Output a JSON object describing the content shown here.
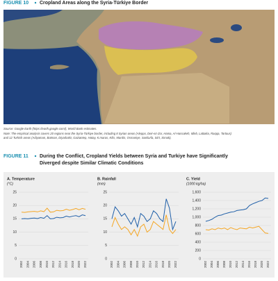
{
  "figure10": {
    "label": "FIGURE 10",
    "title": "Cropland Areas along the Syria-Türkiye Border",
    "source": "Source: Google Earth (https://earth.google.com/); World Bank estimates.",
    "note": [
      "Note: The empirical analysis covers 20 regions near the Syria-Türkiye border, including 8 Syrian areas (Aleppo, Deir-ez-Zor, Hama, Al-Hassakeh, Idleb, Lattakia, Raqqa, Tartous)",
      "and 12 Turkish areas (Adiyaman, Batman, Diyarbakir, Gaziantep, Hatay, K.maras, Kilis, Mardin, Osmaniye, Sanliurfa, Siirt, Sirnak)."
    ]
  },
  "figure11": {
    "label": "FIGURE 11",
    "title": [
      "During the Conflict, Cropland Yields between Syria and Turkiye have Significantly",
      "Diverged despite Similar Climatic Conditions"
    ],
    "panels": [
      {
        "type": "line",
        "title": "A. Temperature",
        "unit": "(°C)",
        "categories": [
          "2002",
          null,
          "2004",
          null,
          "2006",
          null,
          "2008",
          null,
          "2010",
          null,
          "2012",
          null,
          "2014",
          null,
          "2016",
          null,
          "2018",
          null,
          "2020",
          null,
          "2022"
        ],
        "series": [
          {
            "color": "#1f5fa8",
            "values": [
              15.0,
              15.1,
              15.0,
              15.2,
              15.3,
              15.1,
              15.5,
              15.2,
              16.2,
              15.0,
              15.1,
              15.6,
              15.4,
              15.5,
              16.0,
              15.7,
              16.0,
              16.2,
              15.8,
              16.5,
              16.2
            ]
          },
          {
            "color": "#f5a623",
            "values": [
              17.5,
              17.4,
              17.6,
              17.7,
              17.8,
              17.6,
              18.0,
              17.7,
              19.0,
              17.5,
              17.6,
              18.2,
              18.0,
              18.1,
              18.6,
              18.2,
              18.5,
              18.9,
              18.4,
              18.9,
              18.6
            ]
          }
        ],
        "ylim": [
          0,
          25
        ],
        "yticks": [
          0,
          5,
          10,
          15,
          20,
          25
        ]
      },
      {
        "type": "line",
        "title": "B. Rainfall",
        "unit": "(mm)",
        "categories": [
          "2002",
          null,
          "2004",
          null,
          "2006",
          null,
          "2008",
          null,
          "2010",
          null,
          "2012",
          null,
          "2014",
          null,
          "2016",
          null,
          "2018",
          null,
          "2020",
          null,
          "2022"
        ],
        "series": [
          {
            "color": "#1f5fa8",
            "values": [
              15,
              19.5,
              18,
              16,
              17,
              15,
              13,
              15.5,
              12,
              17,
              16,
              14,
              15,
              18,
              17,
              15,
              14,
              22.5,
              19,
              11,
              14
            ]
          },
          {
            "color": "#f5a623",
            "values": [
              12,
              15.5,
              13,
              11,
              12,
              11,
              9,
              11,
              8.5,
              12,
              13,
              10,
              11,
              14,
              13,
              12,
              11,
              16.5,
              11,
              9.5,
              11
            ]
          }
        ],
        "ylim": [
          0,
          25
        ],
        "yticks": [
          0,
          5,
          10,
          15,
          20,
          25
        ]
      },
      {
        "type": "line",
        "title": "C. Yield",
        "unit": "(1000 kg/ha)",
        "categories": [
          "2002",
          null,
          "2004",
          null,
          "2006",
          null,
          "2008",
          null,
          "2010",
          null,
          "2012",
          null,
          "2014",
          null,
          "2016",
          null,
          "2018",
          null,
          "2020",
          null,
          "2022"
        ],
        "series": [
          {
            "color": "#1f5fa8",
            "values": [
              900,
              920,
              950,
              1000,
              1040,
              1050,
              1080,
              1100,
              1120,
              1130,
              1160,
              1170,
              1180,
              1200,
              1280,
              1320,
              1350,
              1380,
              1400,
              1460,
              1450
            ]
          },
          {
            "color": "#f5a623",
            "values": [
              700,
              690,
              720,
              700,
              740,
              720,
              740,
              700,
              750,
              720,
              700,
              740,
              730,
              720,
              760,
              740,
              760,
              780,
              700,
              620,
              610
            ]
          }
        ],
        "ylim": [
          0,
          1600
        ],
        "yticks": [
          0,
          200,
          400,
          600,
          800,
          {
            "value": 1000,
            "label": "1,000"
          },
          {
            "value": 1200,
            "label": "1,200"
          },
          {
            "value": 1400,
            "label": "1,400"
          },
          {
            "value": 1600,
            "label": "1,600"
          }
        ]
      }
    ]
  }
}
